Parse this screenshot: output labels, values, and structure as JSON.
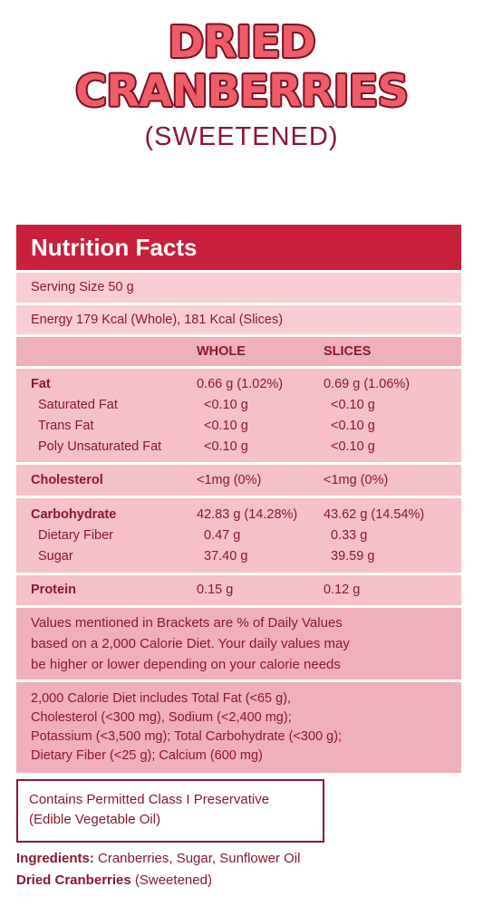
{
  "title": {
    "line1": "DRIED",
    "line2": "CRANBERRIES",
    "subtitle": "(SWEETENED)"
  },
  "panel": {
    "header": "Nutrition Facts",
    "serving_size": "Serving Size 50 g",
    "energy": "Energy 179 Kcal (Whole), 181 Kcal (Slices)",
    "col_whole": "WHOLE",
    "col_slices": "SLICES",
    "fat_group": [
      {
        "label": "Fat",
        "whole": "0.66 g (1.02%)",
        "slices": "0.69 g (1.06%)"
      },
      {
        "label": "Saturated Fat",
        "whole": "<0.10 g",
        "slices": "<0.10 g"
      },
      {
        "label": "Trans Fat",
        "whole": "<0.10 g",
        "slices": "<0.10 g"
      },
      {
        "label": "Poly Unsaturated Fat",
        "whole": "<0.10 g",
        "slices": "<0.10 g"
      }
    ],
    "cholesterol": {
      "label": "Cholesterol",
      "whole": "<1mg (0%)",
      "slices": "<1mg (0%)"
    },
    "carb_group": [
      {
        "label": "Carbohydrate",
        "whole": "42.83 g (14.28%)",
        "slices": "43.62 g (14.54%)"
      },
      {
        "label": "Dietary Fiber",
        "whole": "0.47 g",
        "slices": "0.33 g"
      },
      {
        "label": "Sugar",
        "whole": "37.40 g",
        "slices": "39.59 g"
      }
    ],
    "protein": {
      "label": "Protein",
      "whole": "0.15 g",
      "slices": "0.12 g"
    },
    "note_lines": [
      "Values mentioned in Brackets are % of Daily Values",
      "based on a 2,000 Calorie Diet. Your daily values may",
      "be higher or lower depending on your calorie needs"
    ],
    "diet_lines": [
      "2,000 Calorie Diet includes Total Fat (<65 g),",
      "Cholesterol (<300 mg), Sodium (<2,400 mg);",
      "Potassium (<3,500 mg); Total Carbohydrate (<300 g);",
      "Dietary Fiber (<25 g); Calcium (600 mg)"
    ]
  },
  "preservative": {
    "line1": "Contains Permitted Class I Preservative",
    "line2": "(Edible Vegetable Oil)"
  },
  "ingredients": {
    "label": "Ingredients:",
    "text": " Cranberries, Sugar, Sunflower Oil",
    "product_bold": "Dried Cranberries",
    "product_rest": " (Sweetened)"
  },
  "colors": {
    "header_bg": "#c8203b",
    "row_bg": "#f5c0c8",
    "text": "#8a1830",
    "title_fill": "#ee5d68"
  }
}
